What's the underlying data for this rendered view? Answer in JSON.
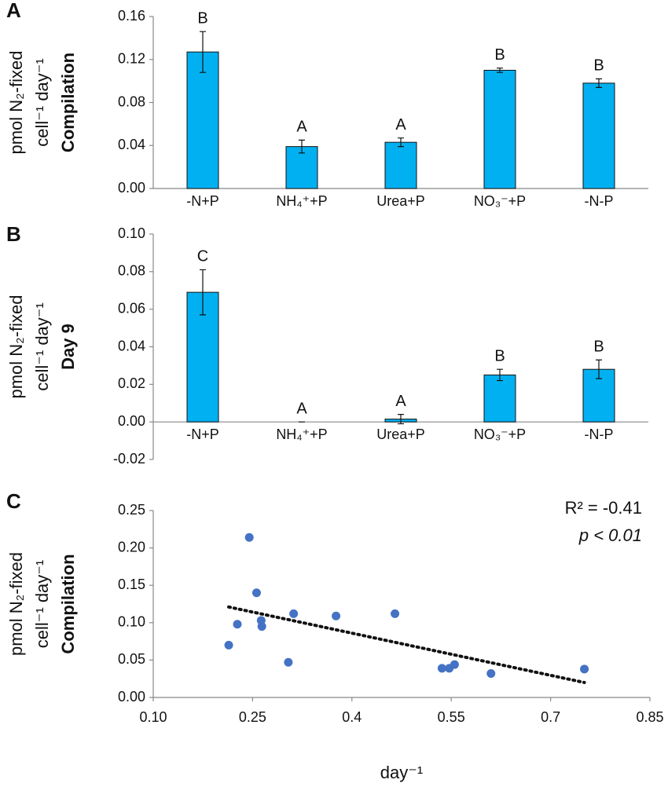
{
  "chart_data": [
    {
      "type": "bar",
      "panel_label": "A",
      "ylabel": [
        "pmol N₂-fixed",
        "cell⁻¹ day⁻¹"
      ],
      "subtitle": "Compilation",
      "categories": [
        "-N+P",
        "NH₄⁺+P",
        "Urea+P",
        "NO₃⁻+P",
        "-N-P"
      ],
      "values": [
        0.127,
        0.039,
        0.043,
        0.11,
        0.098
      ],
      "errors": [
        0.019,
        0.006,
        0.004,
        0.002,
        0.004
      ],
      "letters": [
        "B",
        "A",
        "A",
        "B",
        "B"
      ],
      "color": "#00b0f0",
      "ylim": [
        0,
        0.16
      ],
      "yticks": [
        {
          "value": 0,
          "label": "0.00"
        },
        {
          "value": 0.04,
          "label": "0.04"
        },
        {
          "value": 0.08,
          "label": "0.08"
        },
        {
          "value": 0.12,
          "label": "0.12"
        },
        {
          "value": 0.16,
          "label": "0.16"
        }
      ]
    },
    {
      "type": "bar",
      "panel_label": "B",
      "ylabel": [
        "pmol N₂-fixed",
        "cell⁻¹ day⁻¹"
      ],
      "subtitle": "Day 9",
      "categories": [
        "-N+P",
        "NH₄⁺+P",
        "Urea+P",
        "NO₃⁻+P",
        "-N-P"
      ],
      "values": [
        0.069,
        0,
        0.0015,
        0.025,
        0.028
      ],
      "errors": [
        0.012,
        0,
        0.0025,
        0.003,
        0.005
      ],
      "letters": [
        "C",
        "A",
        "A",
        "B",
        "B"
      ],
      "color": "#00b0f0",
      "ylim": [
        -0.02,
        0.1
      ],
      "yticks": [
        {
          "value": -0.02,
          "label": "-0.02"
        },
        {
          "value": 0,
          "label": "0.00"
        },
        {
          "value": 0.02,
          "label": "0.02"
        },
        {
          "value": 0.04,
          "label": "0.04"
        },
        {
          "value": 0.06,
          "label": "0.06"
        },
        {
          "value": 0.08,
          "label": "0.08"
        },
        {
          "value": 0.1,
          "label": "0.10"
        }
      ]
    },
    {
      "type": "scatter",
      "panel_label": "C",
      "ylabel": [
        "pmol N₂-fixed",
        "cell⁻¹ day⁻¹"
      ],
      "subtitle": "Compilation",
      "xlabel": "day⁻¹",
      "color": "#4472c4",
      "x": [
        0.214,
        0.227,
        0.245,
        0.256,
        0.263,
        0.264,
        0.304,
        0.312,
        0.376,
        0.465,
        0.536,
        0.547,
        0.555,
        0.61,
        0.751
      ],
      "values": [
        0.07,
        0.098,
        0.214,
        0.14,
        0.103,
        0.095,
        0.047,
        0.112,
        0.109,
        0.112,
        0.039,
        0.039,
        0.044,
        0.032,
        0.038
      ],
      "trendline": {
        "x": [
          0.214,
          0.751
        ],
        "values": [
          0.121,
          0.02
        ]
      },
      "annotations": [
        "R² = -0.41",
        "p < 0.01"
      ],
      "xlim": [
        0.1,
        0.85
      ],
      "xticks": [
        {
          "value": 0.1,
          "label": "0.10"
        },
        0.25,
        0.4,
        0.55,
        0.7,
        0.85
      ],
      "ylim": [
        0,
        0.25
      ],
      "yticks": [
        {
          "value": 0,
          "label": "0.00"
        },
        0.05,
        {
          "value": 0.1,
          "label": "0.10"
        },
        0.15,
        {
          "value": 0.2,
          "label": "0.20"
        },
        0.25
      ]
    }
  ]
}
